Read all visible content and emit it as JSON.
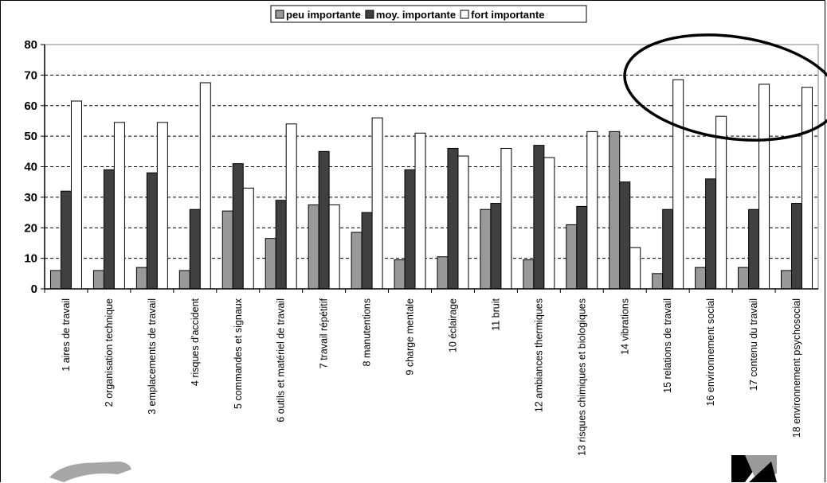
{
  "chart_data": {
    "type": "bar",
    "title": "",
    "xlabel": "",
    "ylabel": "",
    "ylim": [
      0,
      80
    ],
    "yticks": [
      0,
      10,
      20,
      30,
      40,
      50,
      60,
      70,
      80
    ],
    "grid": "horizontal-dashed",
    "legend_position": "top-center",
    "categories": [
      "1 aires de travail",
      "2 organisation technique",
      "3 emplacements de travail",
      "4 risques d'accident",
      "5 commandes et signaux",
      "6 outils et matériel de travail",
      "7 travail répétitif",
      "8 manutentions",
      "9 charge mentale",
      "10 éclairage",
      "11 bruit",
      "12 ambiances thermiques",
      "13 risques chimiques et biologiques",
      "14 vibrations",
      "15 relations de travail",
      "16 environnement social",
      "17 contenu du travail",
      "18 environnement psychosocial"
    ],
    "series": [
      {
        "name": "peu importante",
        "color": "#999999",
        "values": [
          6,
          6,
          7,
          6,
          25.5,
          16.5,
          27.5,
          18.5,
          9.5,
          10.5,
          26,
          9.5,
          21,
          51.5,
          5,
          7,
          7,
          6
        ]
      },
      {
        "name": "moy. importante",
        "color": "#404040",
        "values": [
          32,
          39,
          38,
          26,
          41,
          29,
          45,
          25,
          39,
          46,
          28,
          47,
          27,
          35,
          26,
          36,
          26,
          28
        ]
      },
      {
        "name": "fort importante",
        "color": "#ffffff",
        "values": [
          61.5,
          54.5,
          54.5,
          67.5,
          33,
          54,
          27.5,
          56,
          51,
          43.5,
          46,
          43,
          51.5,
          13.5,
          68.5,
          56.5,
          67,
          66
        ]
      }
    ]
  },
  "annotations": {
    "highlight_ellipse": "circles categories 15-18 fort importante bars"
  }
}
